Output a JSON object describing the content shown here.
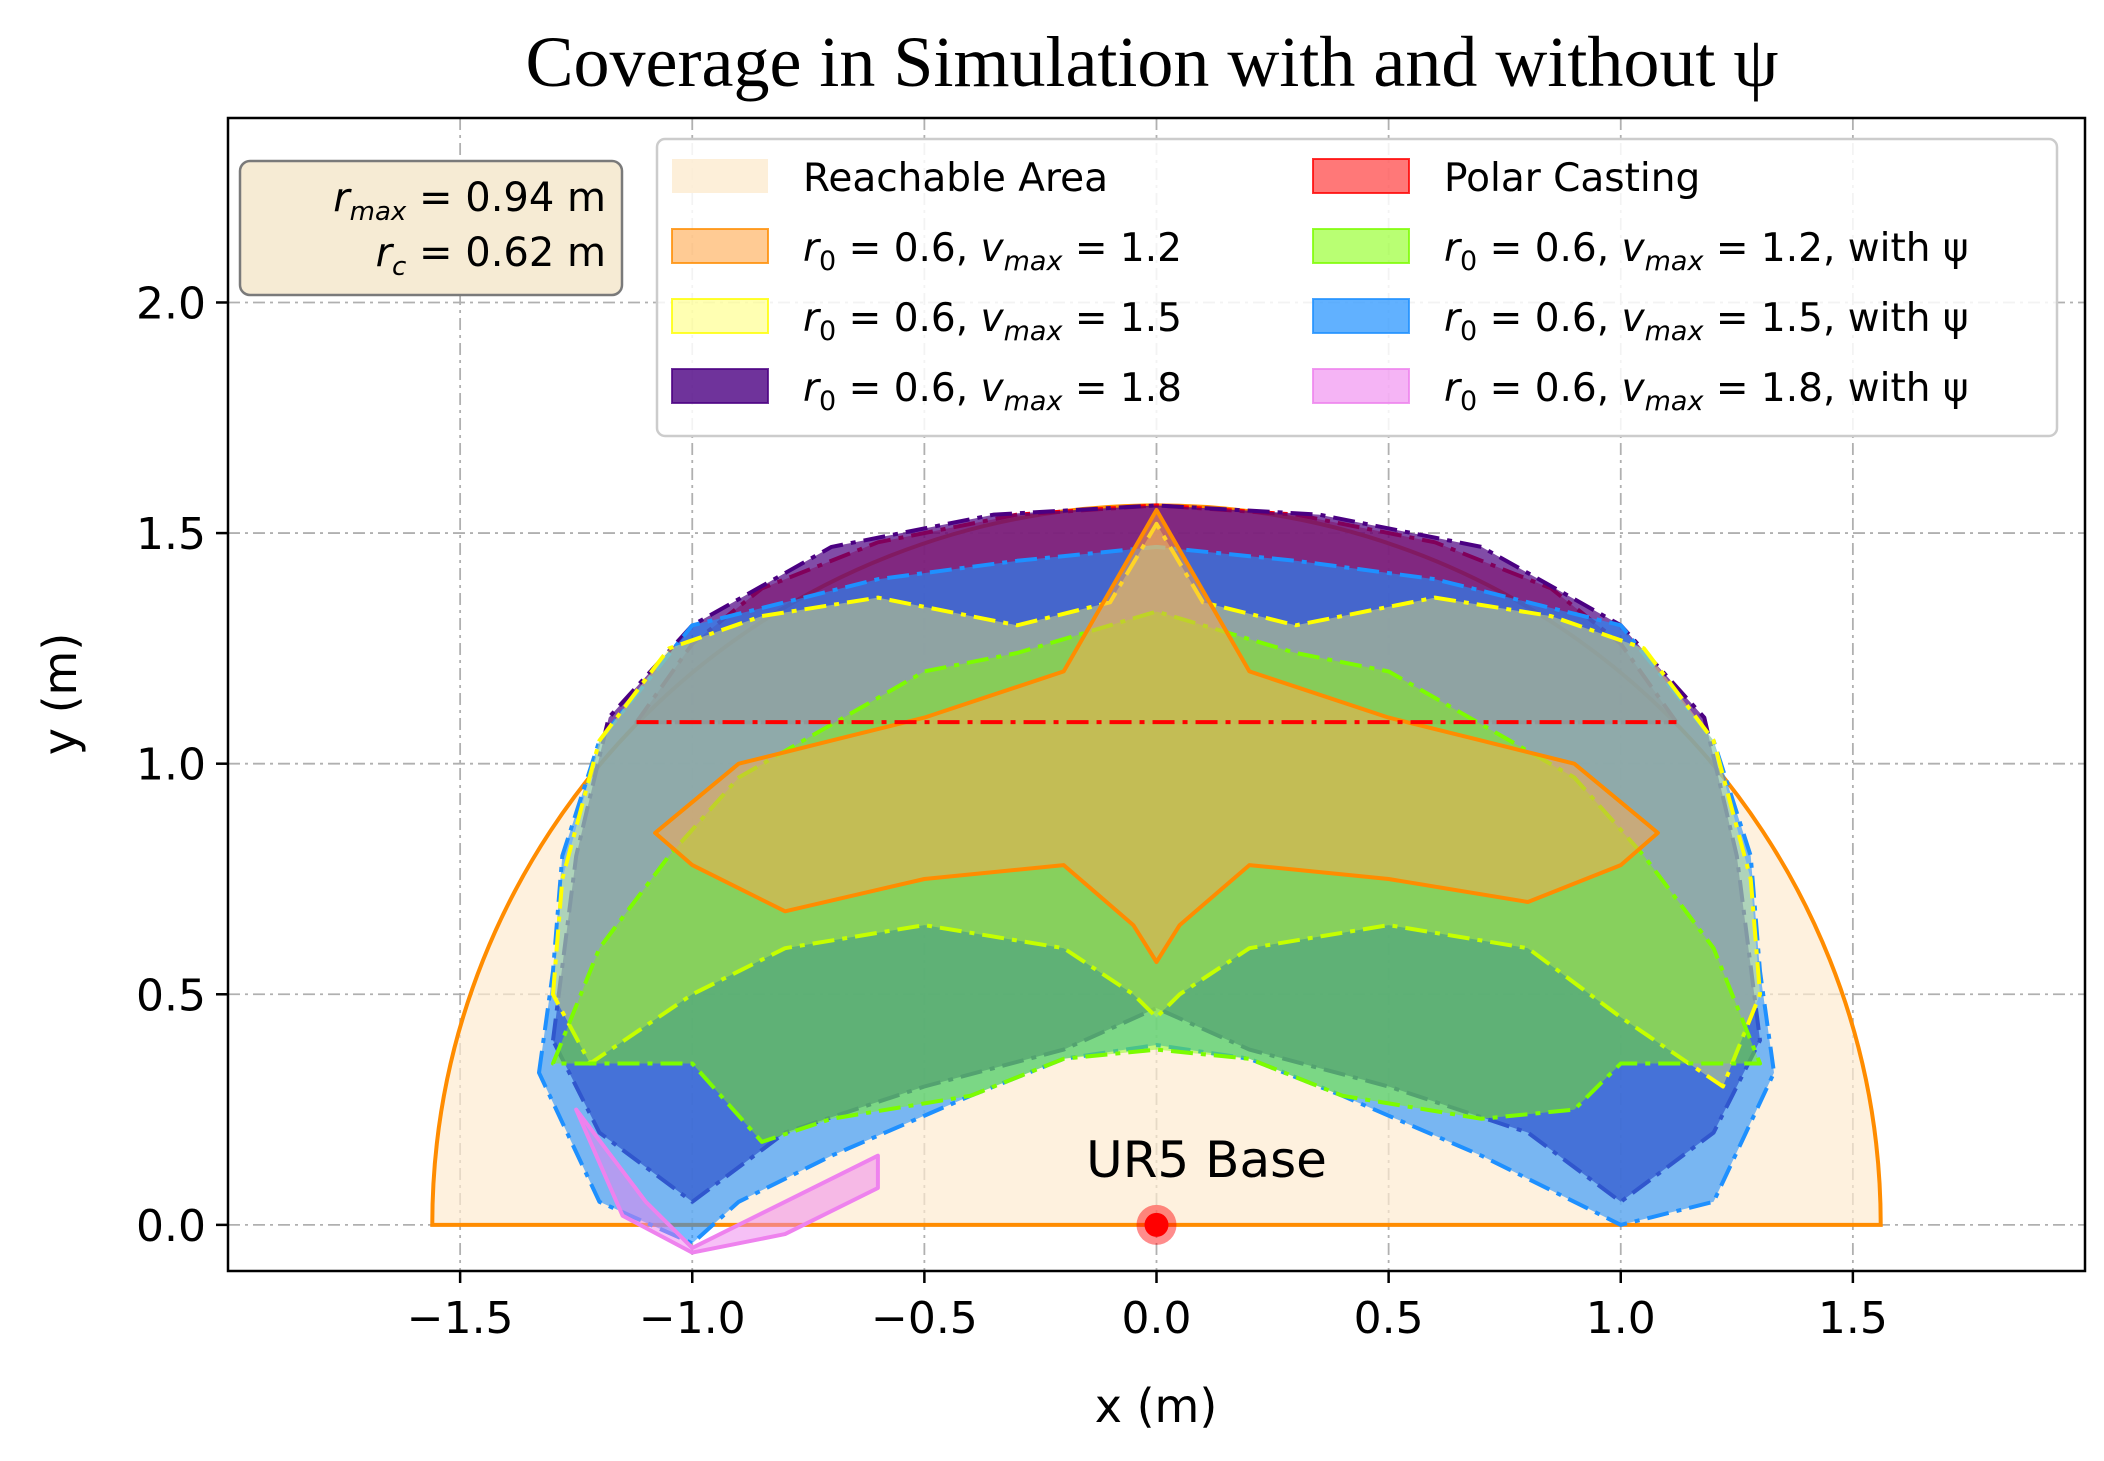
{
  "chart_data": {
    "type": "area",
    "title": "Coverage in Simulation with and without ψ",
    "xlabel": "x (m)",
    "ylabel": "y (m)",
    "xlim": [
      -2.0,
      2.0
    ],
    "ylim": [
      -0.1,
      2.4
    ],
    "x_ticks": [
      "−1.5",
      "−1.0",
      "−0.5",
      "0.0",
      "0.5",
      "1.0",
      "1.5"
    ],
    "y_ticks": [
      "0.0",
      "0.5",
      "1.0",
      "1.5",
      "2.0"
    ],
    "grid": true,
    "legend_placement": "top-right",
    "info_box": {
      "line1": {
        "symbol": "r",
        "sub": "max",
        "text": " = 0.94 m"
      },
      "line2": {
        "symbol": "r",
        "sub": "c",
        "text": " = 0.62 m"
      }
    },
    "annotation": {
      "text": "UR5 Base",
      "x": 0.0,
      "y": 0.0,
      "color": "#ff0000"
    },
    "reachable_radius": 1.56,
    "polar_casting_cut_y": 1.09,
    "series": [
      {
        "id": "reachable",
        "name": "Reachable Area",
        "legend_label": "Reachable Area",
        "fill": "#fdebd0",
        "fill_opacity": 0.7,
        "line": "#ff8c00",
        "dash": "solid",
        "points": []
      },
      {
        "id": "polar",
        "name": "Polar Casting",
        "legend_label": "Polar Casting",
        "fill": "#ff3030",
        "fill_opacity": 0.55,
        "line": "#ff0000",
        "dash": "dashdot",
        "points": [
          [
            -1.12,
            1.09
          ],
          [
            -1.0,
            1.26
          ],
          [
            -0.85,
            1.38
          ],
          [
            -0.6,
            1.48
          ],
          [
            -0.3,
            1.54
          ],
          [
            0,
            1.56
          ],
          [
            0.3,
            1.54
          ],
          [
            0.6,
            1.48
          ],
          [
            0.85,
            1.38
          ],
          [
            1.0,
            1.26
          ],
          [
            1.12,
            1.09
          ]
        ]
      },
      {
        "id": "v12",
        "legend_prefix": "r",
        "legend_prefix_sub": "0",
        "legend_mid": " = 0.6, ",
        "legend_var": "v",
        "legend_var_sub": "max",
        "legend_value": " = 1.2",
        "legend_suffix": "",
        "fill": "#ffa94d",
        "fill_opacity": 0.5,
        "line": "#ff8c00",
        "dash": "solid",
        "points": [
          [
            -1.08,
            0.85
          ],
          [
            -0.9,
            1.0
          ],
          [
            -0.7,
            1.05
          ],
          [
            -0.5,
            1.1
          ],
          [
            -0.2,
            1.2
          ],
          [
            0,
            1.55
          ],
          [
            0.2,
            1.2
          ],
          [
            0.5,
            1.1
          ],
          [
            0.7,
            1.05
          ],
          [
            0.9,
            1.0
          ],
          [
            1.08,
            0.85
          ],
          [
            1.0,
            0.78
          ],
          [
            0.8,
            0.7
          ],
          [
            0.5,
            0.75
          ],
          [
            0.2,
            0.78
          ],
          [
            0.05,
            0.65
          ],
          [
            0,
            0.57
          ],
          [
            -0.05,
            0.65
          ],
          [
            -0.2,
            0.78
          ],
          [
            -0.5,
            0.75
          ],
          [
            -0.8,
            0.68
          ],
          [
            -1.0,
            0.78
          ]
        ]
      },
      {
        "id": "v15",
        "legend_prefix": "r",
        "legend_prefix_sub": "0",
        "legend_mid": " = 0.6, ",
        "legend_var": "v",
        "legend_var_sub": "max",
        "legend_value": " = 1.5",
        "legend_suffix": "",
        "fill": "#ffff66",
        "fill_opacity": 0.4,
        "line": "#ffff00",
        "dash": "dashdot",
        "points": [
          [
            -1.3,
            0.5
          ],
          [
            -1.28,
            0.75
          ],
          [
            -1.2,
            1.05
          ],
          [
            -1.05,
            1.25
          ],
          [
            -0.85,
            1.32
          ],
          [
            -0.6,
            1.36
          ],
          [
            -0.3,
            1.3
          ],
          [
            -0.1,
            1.35
          ],
          [
            0,
            1.52
          ],
          [
            0.1,
            1.35
          ],
          [
            0.3,
            1.3
          ],
          [
            0.6,
            1.36
          ],
          [
            0.85,
            1.32
          ],
          [
            1.05,
            1.25
          ],
          [
            1.2,
            1.05
          ],
          [
            1.28,
            0.75
          ],
          [
            1.3,
            0.5
          ],
          [
            1.22,
            0.3
          ],
          [
            1.0,
            0.45
          ],
          [
            0.8,
            0.6
          ],
          [
            0.5,
            0.65
          ],
          [
            0.2,
            0.6
          ],
          [
            0.05,
            0.5
          ],
          [
            0,
            0.45
          ],
          [
            -0.05,
            0.5
          ],
          [
            -0.2,
            0.6
          ],
          [
            -0.5,
            0.65
          ],
          [
            -0.8,
            0.6
          ],
          [
            -1.0,
            0.5
          ],
          [
            -1.22,
            0.35
          ]
        ]
      },
      {
        "id": "v18",
        "legend_prefix": "r",
        "legend_prefix_sub": "0",
        "legend_mid": " = 0.6, ",
        "legend_var": "v",
        "legend_var_sub": "max",
        "legend_value": " = 1.8",
        "legend_suffix": "",
        "fill": "#4b0082",
        "fill_opacity": 0.7,
        "line": "#4b0082",
        "dash": "dashdot",
        "points": [
          [
            -1.3,
            0.4
          ],
          [
            -1.25,
            0.8
          ],
          [
            -1.18,
            1.1
          ],
          [
            -1.0,
            1.3
          ],
          [
            -0.7,
            1.47
          ],
          [
            -0.35,
            1.54
          ],
          [
            0,
            1.56
          ],
          [
            0.35,
            1.54
          ],
          [
            0.7,
            1.47
          ],
          [
            1.0,
            1.3
          ],
          [
            1.18,
            1.1
          ],
          [
            1.25,
            0.8
          ],
          [
            1.3,
            0.4
          ],
          [
            1.2,
            0.2
          ],
          [
            1.0,
            0.05
          ],
          [
            0.8,
            0.2
          ],
          [
            0.5,
            0.3
          ],
          [
            0.2,
            0.38
          ],
          [
            0,
            0.47
          ],
          [
            -0.2,
            0.38
          ],
          [
            -0.5,
            0.3
          ],
          [
            -0.8,
            0.2
          ],
          [
            -1.0,
            0.05
          ],
          [
            -1.2,
            0.2
          ]
        ]
      },
      {
        "id": "v12psi",
        "legend_prefix": "r",
        "legend_prefix_sub": "0",
        "legend_mid": " = 0.6, ",
        "legend_var": "v",
        "legend_var_sub": "max",
        "legend_value": " = 1.2",
        "legend_suffix": ", with ψ",
        "fill": "#7fff00",
        "fill_opacity": 0.45,
        "line": "#7cfc00",
        "dash": "dashdot",
        "points": [
          [
            -1.3,
            0.35
          ],
          [
            -1.2,
            0.6
          ],
          [
            -1.05,
            0.8
          ],
          [
            -0.9,
            0.97
          ],
          [
            -0.5,
            1.2
          ],
          [
            -0.3,
            1.24
          ],
          [
            -0.1,
            1.3
          ],
          [
            0,
            1.33
          ],
          [
            0.1,
            1.3
          ],
          [
            0.3,
            1.24
          ],
          [
            0.5,
            1.2
          ],
          [
            0.9,
            0.97
          ],
          [
            1.05,
            0.8
          ],
          [
            1.2,
            0.6
          ],
          [
            1.3,
            0.35
          ],
          [
            1.0,
            0.35
          ],
          [
            0.9,
            0.25
          ],
          [
            0.7,
            0.23
          ],
          [
            0.4,
            0.28
          ],
          [
            0.2,
            0.36
          ],
          [
            0,
            0.38
          ],
          [
            -0.2,
            0.36
          ],
          [
            -0.4,
            0.28
          ],
          [
            -0.7,
            0.23
          ],
          [
            -0.85,
            0.18
          ],
          [
            -1.0,
            0.35
          ]
        ]
      },
      {
        "id": "v15psi",
        "legend_prefix": "r",
        "legend_prefix_sub": "0",
        "legend_mid": " = 0.6, ",
        "legend_var": "v",
        "legend_var_sub": "max",
        "legend_value": " = 1.5",
        "legend_suffix": ", with ψ",
        "fill": "#1e90ff",
        "fill_opacity": 0.6,
        "line": "#1e90ff",
        "dash": "dashdot",
        "points": [
          [
            -1.33,
            0.33
          ],
          [
            -1.3,
            0.55
          ],
          [
            -1.28,
            0.8
          ],
          [
            -1.2,
            1.05
          ],
          [
            -1.0,
            1.3
          ],
          [
            -0.6,
            1.4
          ],
          [
            -0.3,
            1.44
          ],
          [
            0,
            1.47
          ],
          [
            0.3,
            1.44
          ],
          [
            0.6,
            1.4
          ],
          [
            1.0,
            1.3
          ],
          [
            1.2,
            1.05
          ],
          [
            1.28,
            0.8
          ],
          [
            1.3,
            0.55
          ],
          [
            1.33,
            0.33
          ],
          [
            1.2,
            0.05
          ],
          [
            1.0,
            0.0
          ],
          [
            0.9,
            0.05
          ],
          [
            0.7,
            0.15
          ],
          [
            0.4,
            0.28
          ],
          [
            0.2,
            0.36
          ],
          [
            0,
            0.39
          ],
          [
            -0.2,
            0.36
          ],
          [
            -0.4,
            0.28
          ],
          [
            -0.7,
            0.15
          ],
          [
            -0.9,
            0.05
          ],
          [
            -1.0,
            -0.04
          ],
          [
            -1.2,
            0.05
          ]
        ]
      },
      {
        "id": "v18psi",
        "legend_prefix": "r",
        "legend_prefix_sub": "0",
        "legend_mid": " = 0.6, ",
        "legend_var": "v",
        "legend_var_sub": "max",
        "legend_value": " = 1.8",
        "legend_suffix": ", with ψ",
        "fill": "#ee82ee",
        "fill_opacity": 0.5,
        "line": "#ee82ee",
        "dash": "solid",
        "points": [
          [
            -1.25,
            0.25
          ],
          [
            -1.1,
            0.05
          ],
          [
            -1.0,
            -0.05
          ],
          [
            -0.8,
            0.05
          ],
          [
            -0.6,
            0.15
          ],
          [
            -0.6,
            0.08
          ],
          [
            -0.8,
            -0.02
          ],
          [
            -1.0,
            -0.06
          ],
          [
            -1.15,
            0.02
          ]
        ]
      }
    ]
  }
}
